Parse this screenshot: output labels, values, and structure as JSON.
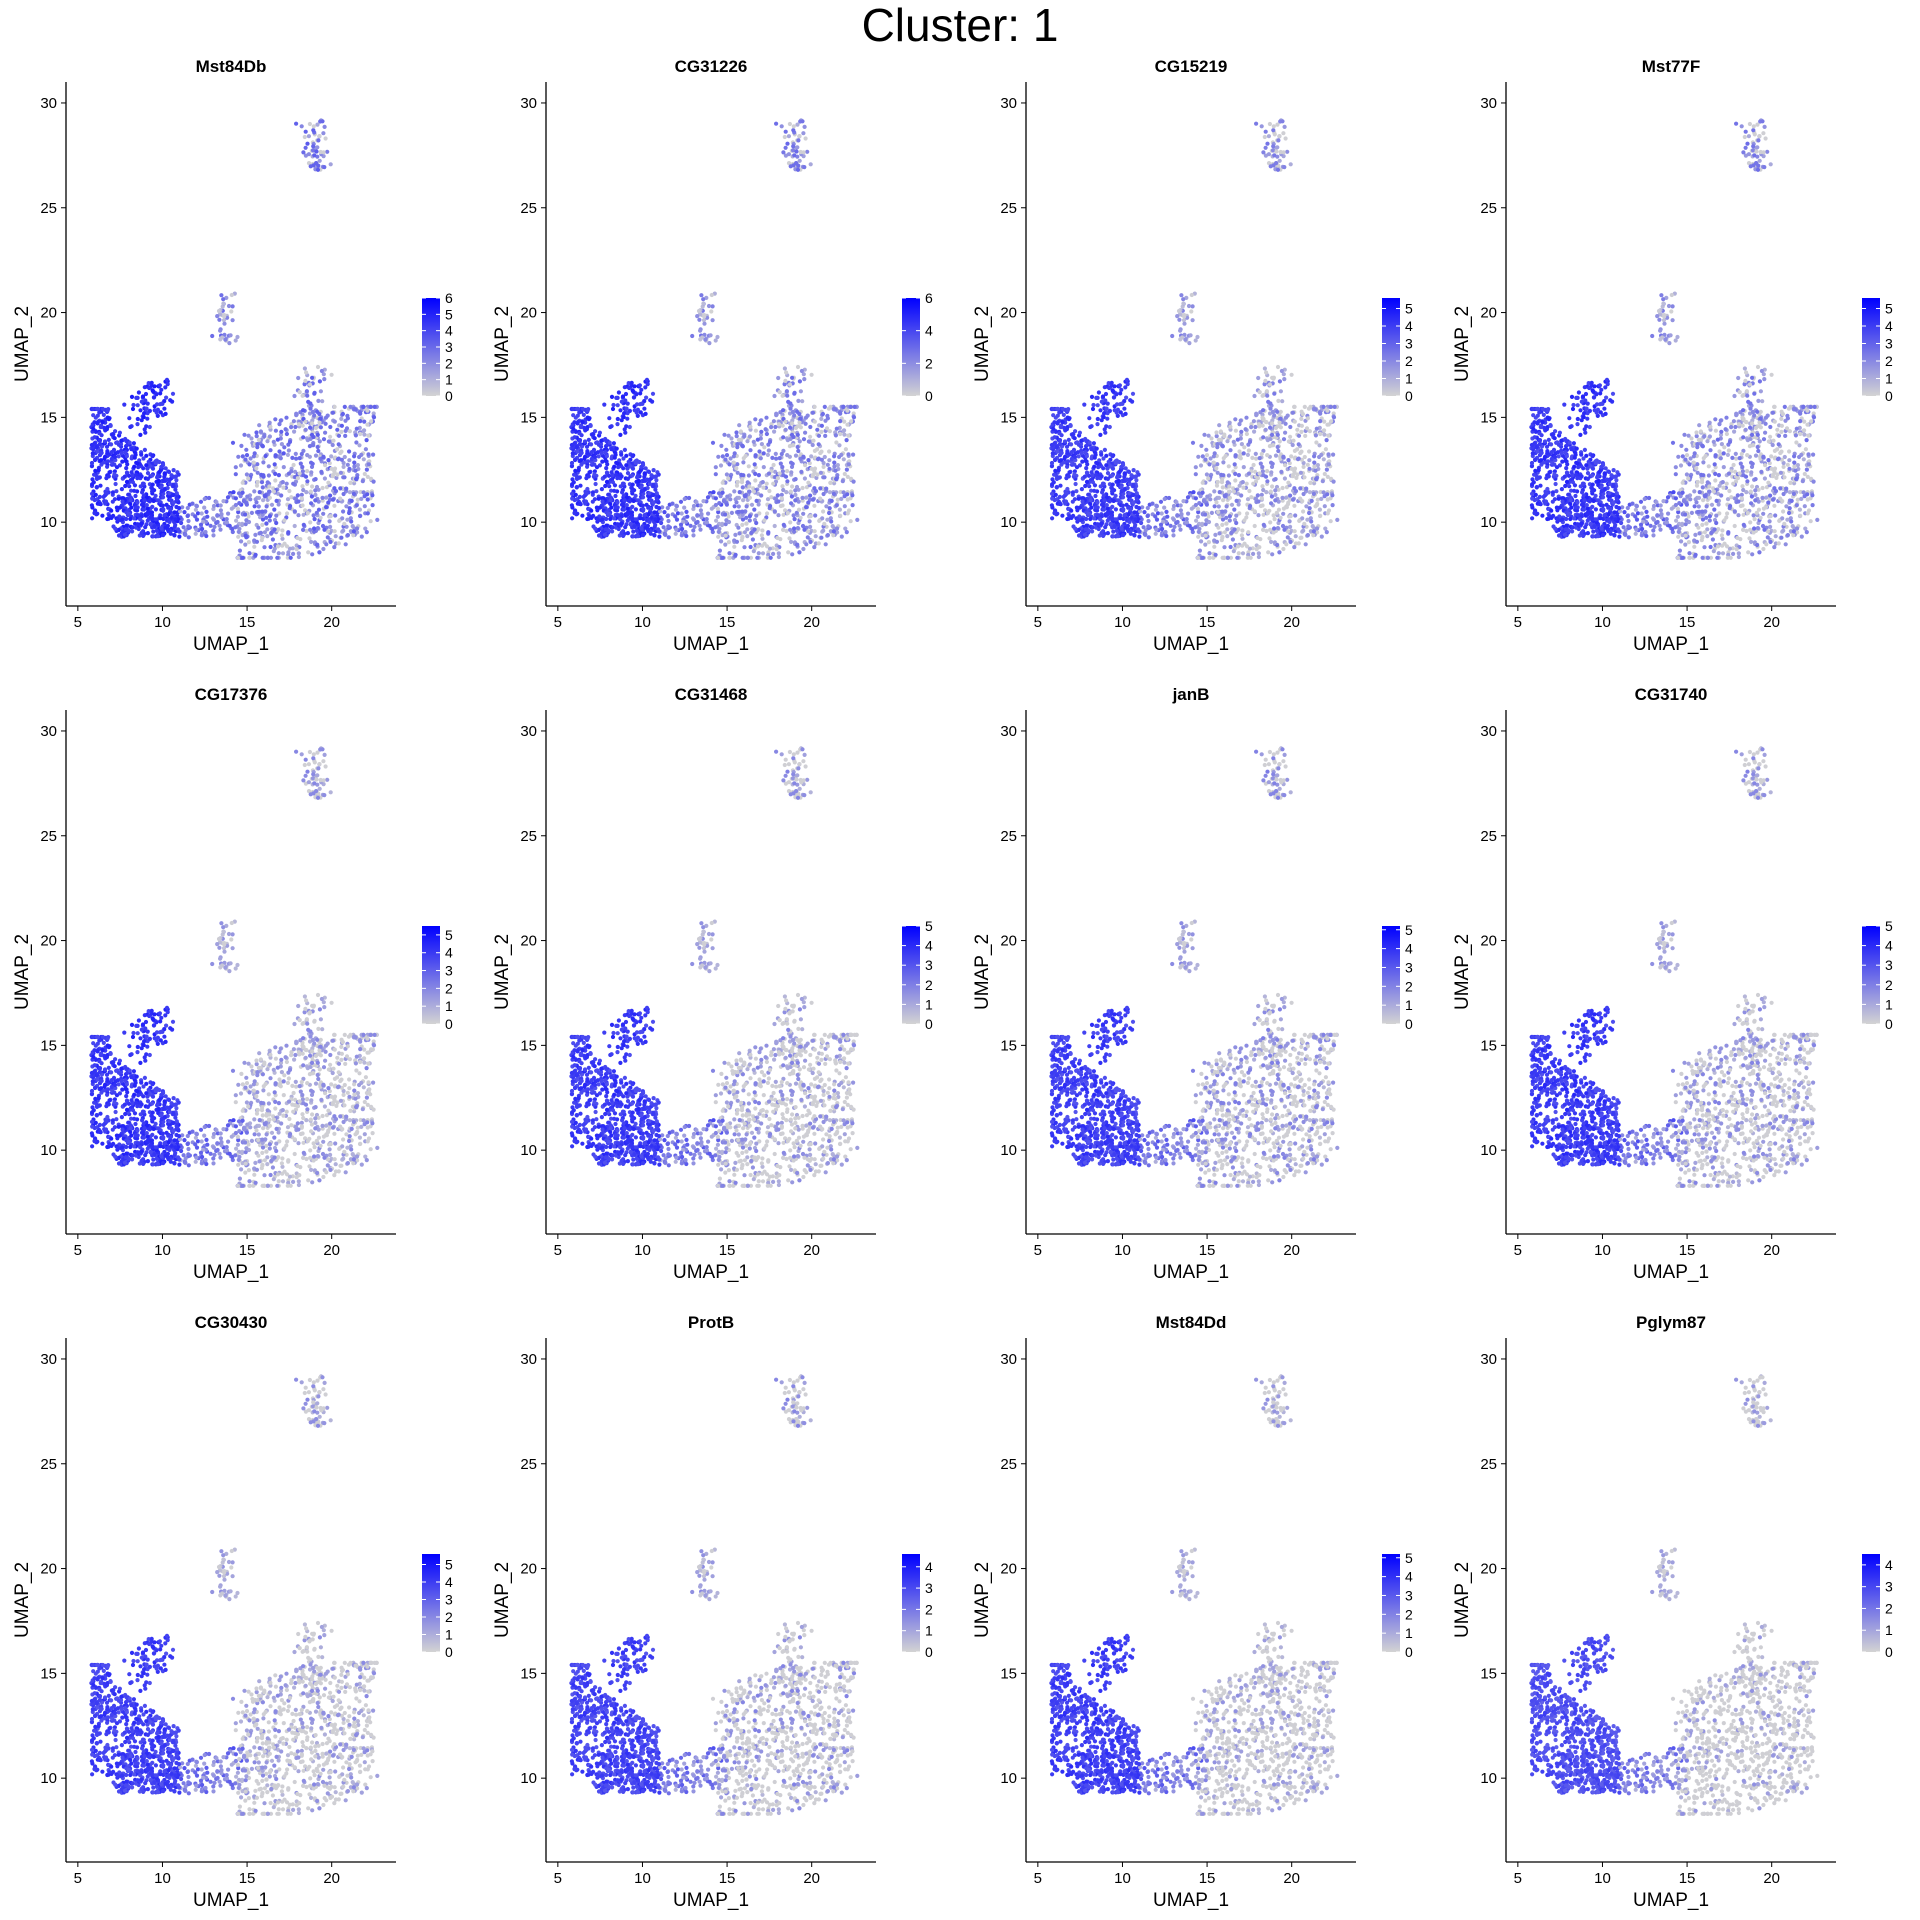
{
  "title": "Cluster: 1",
  "chart_data": {
    "type": "scatter",
    "title": "Cluster: 1",
    "xlabel": "UMAP_1",
    "ylabel": "UMAP_2",
    "xlim": [
      4.3,
      23.8
    ],
    "ylim": [
      6.0,
      31.0
    ],
    "xticks": [
      5,
      10,
      15,
      20
    ],
    "yticks": [
      10,
      15,
      20,
      25,
      30
    ],
    "color_low": "#d3d3d3",
    "color_high": "#0000ff",
    "legend_position": "right",
    "grid": false,
    "panels": [
      {
        "gene": "Mst84Db",
        "max": 6,
        "legend_ticks": [
          0,
          1,
          2,
          3,
          4,
          5,
          6
        ],
        "left_level": 0.88,
        "right_level": 0.45,
        "right_expr_fraction": 0.78
      },
      {
        "gene": "CG31226",
        "max": 6,
        "legend_ticks": [
          0,
          2,
          4,
          6
        ],
        "left_level": 0.86,
        "right_level": 0.4,
        "right_expr_fraction": 0.72
      },
      {
        "gene": "CG15219",
        "max": 5.6,
        "legend_ticks": [
          0,
          1,
          2,
          3,
          4,
          5
        ],
        "left_level": 0.82,
        "right_level": 0.35,
        "right_expr_fraction": 0.6
      },
      {
        "gene": "Mst77F",
        "max": 5.6,
        "legend_ticks": [
          0,
          1,
          2,
          3,
          4,
          5
        ],
        "left_level": 0.84,
        "right_level": 0.38,
        "right_expr_fraction": 0.65
      },
      {
        "gene": "CG17376",
        "max": 5.5,
        "legend_ticks": [
          0,
          1,
          2,
          3,
          4,
          5
        ],
        "left_level": 0.85,
        "right_level": 0.3,
        "right_expr_fraction": 0.55
      },
      {
        "gene": "CG31468",
        "max": 5,
        "legend_ticks": [
          0,
          1,
          2,
          3,
          4,
          5
        ],
        "left_level": 0.82,
        "right_level": 0.3,
        "right_expr_fraction": 0.45
      },
      {
        "gene": "janB",
        "max": 5.2,
        "legend_ticks": [
          0,
          1,
          2,
          3,
          4,
          5
        ],
        "left_level": 0.8,
        "right_level": 0.32,
        "right_expr_fraction": 0.5
      },
      {
        "gene": "CG31740",
        "max": 5,
        "legend_ticks": [
          0,
          1,
          2,
          3,
          4,
          5
        ],
        "left_level": 0.82,
        "right_level": 0.3,
        "right_expr_fraction": 0.48
      },
      {
        "gene": "CG30430",
        "max": 5.6,
        "legend_ticks": [
          0,
          1,
          2,
          3,
          4,
          5
        ],
        "left_level": 0.8,
        "right_level": 0.28,
        "right_expr_fraction": 0.42
      },
      {
        "gene": "ProtB",
        "max": 4.6,
        "legend_ticks": [
          0,
          1,
          2,
          3,
          4
        ],
        "left_level": 0.78,
        "right_level": 0.3,
        "right_expr_fraction": 0.35
      },
      {
        "gene": "Mst84Dd",
        "max": 5.2,
        "legend_ticks": [
          0,
          1,
          2,
          3,
          4,
          5
        ],
        "left_level": 0.8,
        "right_level": 0.25,
        "right_expr_fraction": 0.35
      },
      {
        "gene": "Pglym87",
        "max": 4.5,
        "legend_ticks": [
          0,
          1,
          2,
          3,
          4
        ],
        "left_level": 0.72,
        "right_level": 0.25,
        "right_expr_fraction": 0.25
      }
    ]
  }
}
